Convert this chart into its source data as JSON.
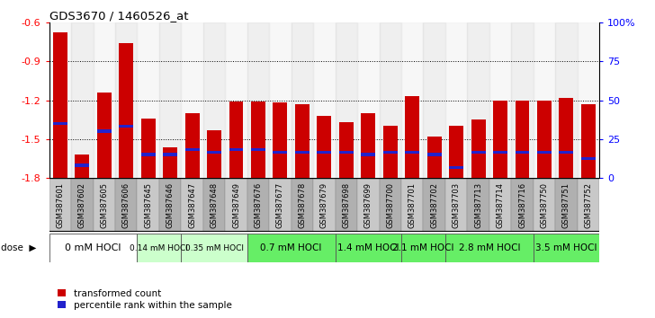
{
  "title": "GDS3670 / 1460526_at",
  "samples": [
    "GSM387601",
    "GSM387602",
    "GSM387605",
    "GSM387606",
    "GSM387645",
    "GSM387646",
    "GSM387647",
    "GSM387648",
    "GSM387649",
    "GSM387676",
    "GSM387677",
    "GSM387678",
    "GSM387679",
    "GSM387698",
    "GSM387699",
    "GSM387700",
    "GSM387701",
    "GSM387702",
    "GSM387703",
    "GSM387713",
    "GSM387714",
    "GSM387716",
    "GSM387750",
    "GSM387751",
    "GSM387752"
  ],
  "red_top_values": [
    -0.68,
    -1.62,
    -1.14,
    -0.76,
    -1.34,
    -1.56,
    -1.3,
    -1.43,
    -1.21,
    -1.21,
    -1.22,
    -1.23,
    -1.32,
    -1.37,
    -1.3,
    -1.4,
    -1.17,
    -1.48,
    -1.4,
    -1.35,
    -1.2,
    -1.2,
    -1.2,
    -1.18,
    -1.23
  ],
  "blue_positions": [
    -1.38,
    -1.7,
    -1.44,
    -1.4,
    -1.62,
    -1.62,
    -1.58,
    -1.6,
    -1.58,
    -1.58,
    -1.6,
    -1.6,
    -1.6,
    -1.6,
    -1.62,
    -1.6,
    -1.6,
    -1.62,
    -1.72,
    -1.6,
    -1.6,
    -1.6,
    -1.6,
    -1.6,
    -1.65
  ],
  "dose_groups": [
    {
      "label": "0 mM HOCl",
      "start": 0,
      "end": 4,
      "color": "#ffffff",
      "fontsize": 8
    },
    {
      "label": "0.14 mM HOCl",
      "start": 4,
      "end": 6,
      "color": "#ccffcc",
      "fontsize": 6.5
    },
    {
      "label": "0.35 mM HOCl",
      "start": 6,
      "end": 9,
      "color": "#ccffcc",
      "fontsize": 6.5
    },
    {
      "label": "0.7 mM HOCl",
      "start": 9,
      "end": 13,
      "color": "#66ee66",
      "fontsize": 7.5
    },
    {
      "label": "1.4 mM HOCl",
      "start": 13,
      "end": 16,
      "color": "#66ee66",
      "fontsize": 7.5
    },
    {
      "label": "2.1 mM HOCl",
      "start": 16,
      "end": 18,
      "color": "#66ee66",
      "fontsize": 7.5
    },
    {
      "label": "2.8 mM HOCl",
      "start": 18,
      "end": 22,
      "color": "#66ee66",
      "fontsize": 7.5
    },
    {
      "label": "3.5 mM HOCl",
      "start": 22,
      "end": 25,
      "color": "#66ee66",
      "fontsize": 7.5
    }
  ],
  "ymin": -1.8,
  "ymax": -0.6,
  "yticks": [
    -1.8,
    -1.5,
    -1.2,
    -0.9,
    -0.6
  ],
  "right_ytick_pcts": [
    0,
    25,
    50,
    75,
    100
  ],
  "right_ytick_labels": [
    "0",
    "25",
    "50",
    "75",
    "100%"
  ],
  "bar_color": "#cc0000",
  "blue_color": "#2222cc",
  "bar_width": 0.65,
  "blue_bar_height": 0.025
}
